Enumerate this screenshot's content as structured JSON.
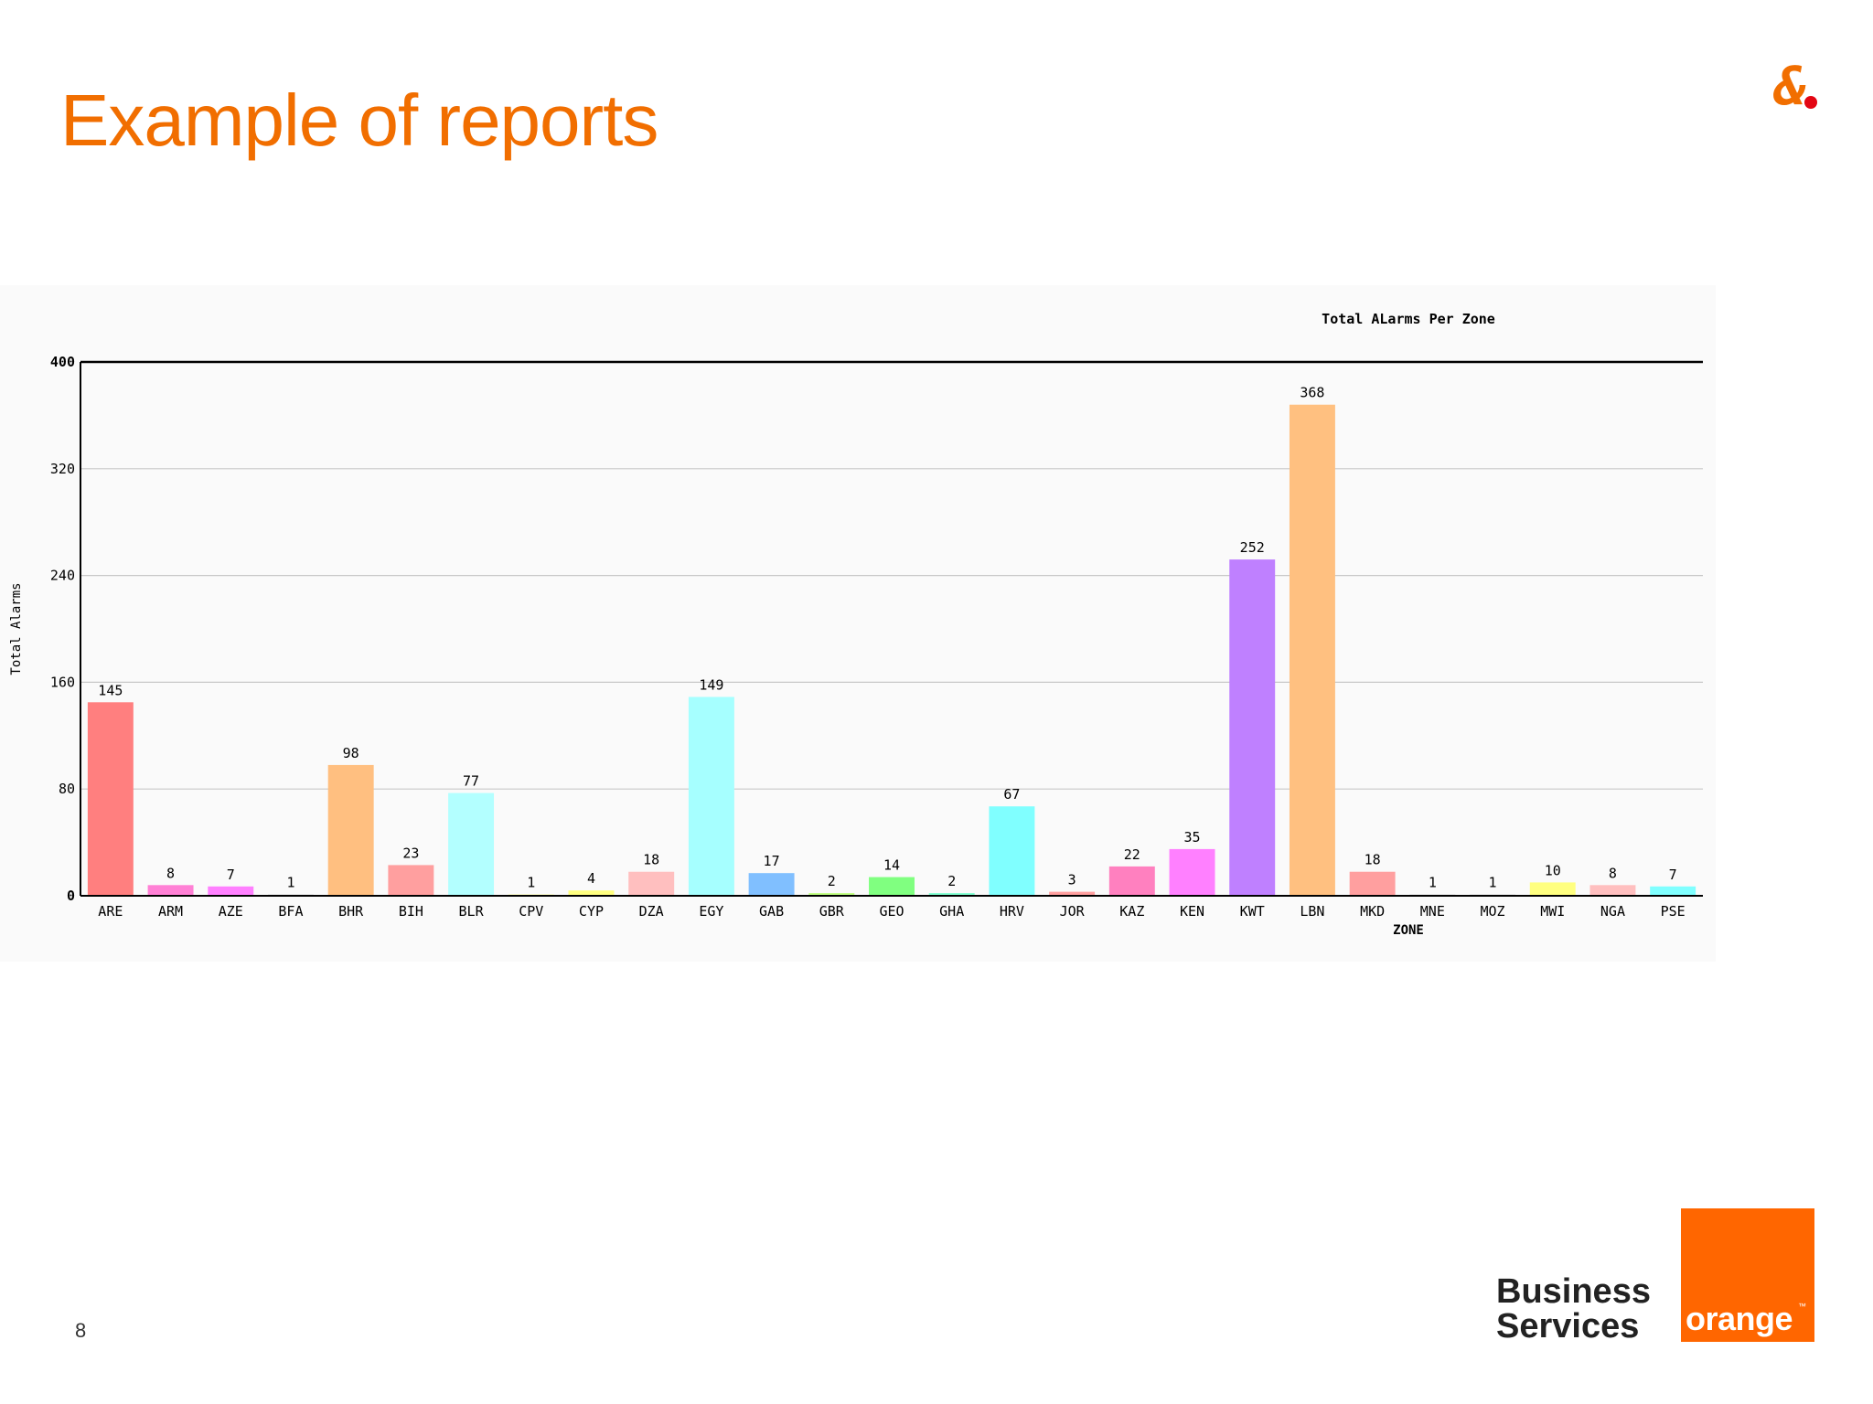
{
  "slide": {
    "title": "Example of reports",
    "page_number": "8"
  },
  "branding": {
    "logo_line1": "Business",
    "logo_line2": "Services",
    "brand_name": "orange",
    "trademark": "™",
    "brand_color": "#ff6600",
    "title_color": "#f16e00"
  },
  "chart_data": {
    "type": "bar",
    "title": "Total ALarms Per Zone",
    "xlabel": "ZONE",
    "ylabel": "Total Alarms",
    "ylim": [
      0,
      400
    ],
    "yticks": [
      0,
      80,
      160,
      240,
      320,
      400
    ],
    "grid": true,
    "legend": "none",
    "categories": [
      "ARE",
      "ARM",
      "AZE",
      "BFA",
      "BHR",
      "BIH",
      "BLR",
      "CPV",
      "CYP",
      "DZA",
      "EGY",
      "GAB",
      "GBR",
      "GEO",
      "GHA",
      "HRV",
      "JOR",
      "KAZ",
      "KEN",
      "KWT",
      "LBN",
      "MKD",
      "MNE",
      "MOZ",
      "MWI",
      "NGA",
      "PSE"
    ],
    "values": [
      145,
      8,
      7,
      1,
      98,
      23,
      77,
      1,
      4,
      18,
      149,
      17,
      2,
      14,
      2,
      67,
      3,
      22,
      35,
      252,
      368,
      18,
      1,
      1,
      10,
      8,
      7
    ],
    "colors": [
      "#ff7f7f",
      "#ff80d5",
      "#ff80ff",
      "#d9d9d9",
      "#ffbf80",
      "#ff9f9f",
      "#b3ffff",
      "#ffffa0",
      "#ffff80",
      "#ffbfbf",
      "#a6ffff",
      "#80bfff",
      "#bfff80",
      "#80ff80",
      "#80ffd0",
      "#80ffff",
      "#ff9f9f",
      "#ff80bf",
      "#ff80ff",
      "#bf80ff",
      "#ffc080",
      "#ff9f9f",
      "#d9d9d9",
      "#d9d9d9",
      "#ffff80",
      "#ffbfbf",
      "#80ffff"
    ]
  }
}
